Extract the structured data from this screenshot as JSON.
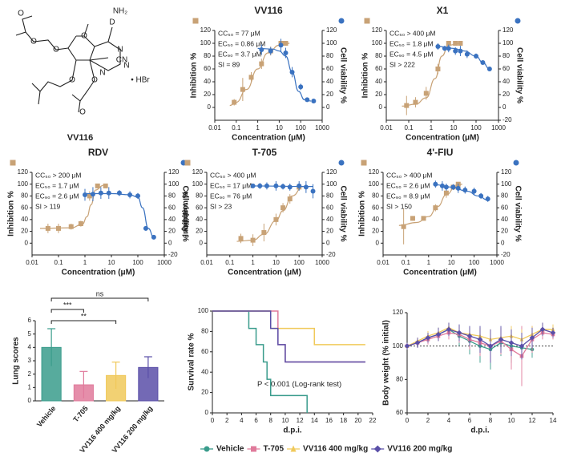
{
  "structure": {
    "name": "VV116",
    "labels": [
      "D",
      "NH₂",
      "N",
      "N",
      "N",
      "O",
      "O",
      "O",
      "O",
      "O",
      "O",
      "O",
      "CN",
      "• HBr"
    ]
  },
  "chart_data": [
    {
      "type": "scatter",
      "title": "VV116",
      "xlabel": "Concentration (μM)",
      "ylabel": "Inhibition %",
      "y2label": "Cell viability %",
      "log_x": true,
      "xlim": [
        0.01,
        1000
      ],
      "xticks": [
        0.01,
        0.1,
        1,
        10,
        100,
        1000
      ],
      "ylim": [
        -20,
        120
      ],
      "yticks": [
        0,
        20,
        40,
        60,
        80,
        100,
        120
      ],
      "y2lim": [
        -20,
        120
      ],
      "y2ticks": [
        0,
        20,
        40,
        60,
        80,
        100,
        120
      ],
      "annotations": [
        "CC₅₀ = 77 μM",
        "EC₅₀ = 0.86 μM",
        "EC₉₀ = 3.7 μM",
        "SI = 89"
      ],
      "series": [
        {
          "color": "#c8a276",
          "marker": "square",
          "x": [
            0.08,
            0.2,
            0.5,
            1.5,
            4,
            12,
            20
          ],
          "values": [
            8,
            28,
            47,
            68,
            88,
            100,
            100
          ],
          "errors": [
            5,
            18,
            8,
            8,
            7,
            4,
            3
          ],
          "fit": {
            "x": [
              0.05,
              0.1,
              0.3,
              1,
              3,
              10,
              30
            ],
            "values": [
              3,
              8,
              28,
              60,
              85,
              97,
              100
            ]
          }
        },
        {
          "color": "#3a72c0",
          "marker": "circle",
          "axis": "y2",
          "x": [
            1.5,
            4,
            12,
            20,
            40,
            100,
            200,
            400
          ],
          "values": [
            90,
            88,
            97,
            85,
            55,
            32,
            12,
            10
          ],
          "errors": [
            8,
            6,
            10,
            8,
            8,
            5,
            3,
            3
          ],
          "fit": {
            "x": [
              1,
              5,
              10,
              20,
              40,
              80,
              150,
              300
            ],
            "values": [
              92,
              91,
              88,
              80,
              55,
              25,
              12,
              10
            ]
          }
        }
      ]
    },
    {
      "type": "scatter",
      "title": "X1",
      "xlabel": "Concentration (μM)",
      "ylabel": "Inhibition %",
      "y2label": "Cell viability %",
      "log_x": true,
      "xlim": [
        0.01,
        1000
      ],
      "xticks": [
        0.01,
        0.1,
        1,
        10,
        100,
        1000
      ],
      "ylim": [
        -20,
        120
      ],
      "yticks": [
        0,
        20,
        40,
        60,
        80,
        100,
        120
      ],
      "y2lim": [
        -20,
        120
      ],
      "y2ticks": [
        -20,
        0,
        20,
        40,
        60,
        80,
        100,
        120
      ],
      "annotations": [
        "CC₅₀ > 400 μM",
        "EC₅₀ = 1.8 μM",
        "EC₉₀ = 4.5 μM",
        "SI > 222"
      ],
      "series": [
        {
          "color": "#c8a276",
          "marker": "square",
          "x": [
            0.08,
            0.2,
            0.6,
            2,
            6,
            12,
            20
          ],
          "values": [
            3,
            8,
            22,
            60,
            100,
            100,
            100
          ],
          "errors": [
            15,
            8,
            10,
            8,
            3,
            3,
            2
          ],
          "fit": {
            "x": [
              0.05,
              0.2,
              0.6,
              1.5,
              3,
              6,
              20
            ],
            "values": [
              2,
              5,
              15,
              45,
              80,
              97,
              100
            ]
          }
        },
        {
          "color": "#3a72c0",
          "marker": "circle",
          "axis": "y2",
          "x": [
            2,
            4,
            6,
            12,
            20,
            40,
            100,
            200,
            400
          ],
          "values": [
            95,
            92,
            92,
            88,
            88,
            83,
            80,
            70,
            60
          ],
          "errors": [
            5,
            4,
            6,
            6,
            8,
            6,
            4,
            3,
            3
          ],
          "fit": {
            "x": [
              2,
              10,
              30,
              100,
              200,
              400
            ],
            "values": [
              95,
              92,
              88,
              80,
              70,
              60
            ]
          }
        }
      ]
    },
    {
      "type": "scatter",
      "title": "RDV",
      "xlabel": "Concentration (μM)",
      "ylabel": "Inhibition %",
      "y2label": "Cell viability %",
      "log_x": true,
      "xlim": [
        0.01,
        1000
      ],
      "xticks": [
        0.01,
        0.1,
        1,
        10,
        100,
        1000
      ],
      "ylim": [
        -20,
        120
      ],
      "yticks": [
        0,
        20,
        40,
        60,
        80,
        100,
        120
      ],
      "y2lim": [
        -20,
        120
      ],
      "y2ticks": [
        -20,
        0,
        20,
        40,
        60,
        80,
        100,
        120
      ],
      "annotations": [
        "CC₅₀ > 200 μM",
        "EC₅₀ = 1.7 μM",
        "EC₉₀ = 2.6 μM",
        "SI > 119"
      ],
      "series": [
        {
          "color": "#c8a276",
          "marker": "square",
          "x": [
            0.04,
            0.1,
            0.3,
            0.7,
            1.5,
            3,
            6
          ],
          "values": [
            25,
            25,
            28,
            33,
            80,
            97,
            97
          ],
          "errors": [
            8,
            8,
            5,
            5,
            8,
            3,
            3
          ],
          "fit": {
            "x": [
              0.02,
              0.3,
              0.8,
              1.2,
              1.7,
              2.5,
              5
            ],
            "values": [
              25,
              26,
              32,
              45,
              65,
              90,
              98
            ]
          }
        },
        {
          "color": "#3a72c0",
          "marker": "circle",
          "axis": "y2",
          "x": [
            1,
            2,
            4,
            8,
            20,
            50,
            100,
            200,
            400
          ],
          "values": [
            82,
            83,
            85,
            85,
            85,
            82,
            80,
            25,
            10
          ],
          "errors": [
            10,
            12,
            10,
            10,
            5,
            6,
            5,
            4,
            3
          ],
          "fit": {
            "x": [
              1,
              10,
              50,
              100,
              150,
              250,
              400
            ],
            "values": [
              84,
              84,
              82,
              78,
              60,
              25,
              10
            ]
          }
        }
      ]
    },
    {
      "type": "scatter",
      "title": "T-705",
      "xlabel": "Concentration (μM)",
      "ylabel": "Inhibition %",
      "y2label": "Cell viability %",
      "log_x": true,
      "xlim": [
        0.01,
        1000
      ],
      "xticks": [
        0.01,
        0.1,
        1,
        10,
        100,
        1000
      ],
      "ylim": [
        -20,
        120
      ],
      "yticks": [
        0,
        20,
        40,
        60,
        80,
        100,
        120
      ],
      "y2lim": [
        -20,
        120
      ],
      "y2ticks": [
        -20,
        0,
        20,
        40,
        60,
        80,
        100,
        120
      ],
      "annotations": [
        "CC₅₀ > 400 μM",
        "EC₅₀ = 17 μM",
        "EC₉₀ = 76 μM",
        "SI > 23"
      ],
      "series": [
        {
          "color": "#c8a276",
          "marker": "square",
          "x": [
            0.3,
            1,
            3,
            10,
            20,
            40,
            100
          ],
          "values": [
            8,
            5,
            18,
            40,
            60,
            75,
            95
          ],
          "errors": [
            8,
            10,
            15,
            10,
            8,
            8,
            5
          ],
          "fit": {
            "x": [
              0.2,
              1,
              3,
              10,
              20,
              50,
              150
            ],
            "values": [
              3,
              5,
              15,
              38,
              55,
              80,
              96
            ]
          }
        },
        {
          "color": "#3a72c0",
          "marker": "circle",
          "axis": "y2",
          "x": [
            1,
            2,
            4,
            10,
            20,
            40,
            100,
            200,
            400
          ],
          "values": [
            97,
            97,
            97,
            97,
            96,
            95,
            97,
            95,
            88
          ],
          "errors": [
            4,
            5,
            6,
            8,
            5,
            6,
            8,
            10,
            12
          ],
          "fit": {
            "x": [
              1,
              400
            ],
            "values": [
              97,
              96
            ]
          }
        }
      ]
    },
    {
      "type": "scatter",
      "title": "4'-FIU",
      "xlabel": "Concentration (μM)",
      "ylabel": "Inhibition %",
      "y2label": "Cell viability %",
      "log_x": true,
      "xlim": [
        0.01,
        1000
      ],
      "xticks": [
        0.01,
        0.1,
        1,
        10,
        100,
        1000
      ],
      "ylim": [
        -20,
        120
      ],
      "yticks": [
        0,
        20,
        40,
        60,
        80,
        100,
        120
      ],
      "y2lim": [
        -20,
        120
      ],
      "y2ticks": [
        -20,
        0,
        20,
        40,
        60,
        80,
        100,
        120
      ],
      "annotations": [
        "CC₅₀ > 400 μM",
        "EC₅₀ = 2.6 μM",
        "EC₉₀ = 8.9 μM",
        "SI > 150"
      ],
      "series": [
        {
          "color": "#c8a276",
          "marker": "square",
          "x": [
            0.08,
            0.2,
            0.6,
            2,
            6,
            12,
            20
          ],
          "values": [
            28,
            42,
            42,
            60,
            85,
            95,
            100
          ],
          "errors": [
            30,
            4,
            3,
            6,
            8,
            4,
            3
          ],
          "fit": {
            "x": [
              0.05,
              0.3,
              1,
              2.5,
              6,
              15,
              30
            ],
            "values": [
              30,
              35,
              45,
              62,
              82,
              95,
              100
            ]
          }
        },
        {
          "color": "#3a72c0",
          "marker": "circle",
          "axis": "y2",
          "x": [
            2,
            4,
            6,
            12,
            20,
            40,
            100,
            200,
            400
          ],
          "values": [
            100,
            97,
            95,
            95,
            93,
            90,
            88,
            80,
            75
          ],
          "errors": [
            6,
            8,
            6,
            5,
            8,
            6,
            6,
            5,
            5
          ],
          "fit": {
            "x": [
              2,
              10,
              50,
              150,
              400
            ],
            "values": [
              99,
              95,
              88,
              80,
              73
            ]
          }
        }
      ]
    },
    {
      "type": "bar",
      "ylabel": "Lung scores",
      "categories": [
        "Vehicle",
        "T-705",
        "VV116 400 mg/kg",
        "VV116 200 mg/kg"
      ],
      "values": [
        4.0,
        1.2,
        1.9,
        2.5
      ],
      "errors": [
        1.4,
        1.0,
        1.0,
        0.8
      ],
      "colors": [
        "#3a9c8c",
        "#e07a9b",
        "#f0c95a",
        "#5a4fa8"
      ],
      "ylim": [
        0,
        6
      ],
      "yticks": [
        0,
        1,
        2,
        3,
        4,
        5,
        6
      ],
      "comparisons": [
        {
          "categories": [
            "Vehicle",
            "VV116 200 mg/kg"
          ],
          "label": "ns"
        },
        {
          "categories": [
            "Vehicle",
            "T-705"
          ],
          "label": "***"
        },
        {
          "categories": [
            "Vehicle",
            "VV116 400 mg/kg"
          ],
          "label": "**"
        }
      ]
    },
    {
      "type": "step",
      "xlabel": "d.p.i.",
      "ylabel": "Survival rate %",
      "annotation": "P < 0.001 (Log-rank test)",
      "xlim": [
        0,
        22
      ],
      "xticks": [
        0,
        2,
        4,
        6,
        8,
        10,
        12,
        14,
        16,
        18,
        20,
        22
      ],
      "ylim": [
        0,
        100
      ],
      "yticks": [
        0,
        20,
        40,
        60,
        80,
        100
      ],
      "series": [
        {
          "name": "Vehicle",
          "color": "#3a9c8c",
          "x": [
            0,
            5,
            6,
            7,
            7.5,
            8,
            13
          ],
          "values": [
            100,
            83,
            67,
            50,
            33,
            17,
            0
          ]
        },
        {
          "name": "T-705",
          "color": "#e07a9b",
          "x": [
            0,
            9,
            10,
            21
          ],
          "values": [
            100,
            67,
            50,
            50
          ]
        },
        {
          "name": "VV116 400 mg/kg",
          "color": "#f0c95a",
          "x": [
            0,
            8,
            14,
            21
          ],
          "values": [
            100,
            83,
            67,
            67
          ]
        },
        {
          "name": "VV116 200 mg/kg",
          "color": "#5a4fa8",
          "x": [
            0,
            8,
            9,
            10,
            21
          ],
          "values": [
            100,
            83,
            67,
            50,
            50
          ]
        }
      ]
    },
    {
      "type": "line",
      "xlabel": "d.p.i.",
      "ylabel": "Body weight (% initial)",
      "ref_line": 100,
      "xlim": [
        0,
        14
      ],
      "xticks": [
        0,
        2,
        4,
        6,
        8,
        10,
        12,
        14
      ],
      "ylim": [
        60,
        120
      ],
      "yticks": [
        60,
        80,
        100,
        120
      ],
      "x": [
        0,
        1,
        2,
        3,
        4,
        5,
        6,
        7,
        8,
        9,
        10,
        11,
        12,
        13,
        14
      ],
      "series": [
        {
          "name": "Vehicle",
          "color": "#3a9c8c",
          "marker": "circle",
          "values": [
            100,
            102,
            105,
            107,
            110,
            106,
            103,
            100,
            98,
            102,
            100,
            99,
            98,
            null,
            null
          ],
          "errors": [
            2,
            3,
            3,
            4,
            4,
            6,
            8,
            10,
            12,
            8,
            10,
            6,
            5,
            null,
            null
          ]
        },
        {
          "name": "T-705",
          "color": "#e07a9b",
          "marker": "square",
          "values": [
            100,
            102,
            104,
            106,
            108,
            107,
            104,
            102,
            100,
            103,
            98,
            94,
            104,
            108,
            107
          ],
          "errors": [
            2,
            3,
            3,
            3,
            4,
            5,
            6,
            8,
            10,
            8,
            12,
            18,
            8,
            4,
            3
          ]
        },
        {
          "name": "VV116 400 mg/kg",
          "color": "#f0c95a",
          "marker": "triangle",
          "values": [
            100,
            103,
            106,
            108,
            111,
            108,
            107,
            106,
            104,
            105,
            106,
            104,
            107,
            110,
            110
          ],
          "errors": [
            2,
            2,
            3,
            3,
            3,
            4,
            4,
            5,
            6,
            5,
            6,
            6,
            5,
            4,
            3
          ]
        },
        {
          "name": "VV116 200 mg/kg",
          "color": "#5a4fa8",
          "marker": "diamond",
          "values": [
            100,
            102,
            105,
            107,
            110,
            108,
            106,
            104,
            100,
            104,
            102,
            100,
            105,
            110,
            108
          ],
          "errors": [
            2,
            3,
            3,
            4,
            4,
            5,
            6,
            8,
            10,
            8,
            8,
            8,
            6,
            4,
            3
          ]
        }
      ]
    }
  ]
}
